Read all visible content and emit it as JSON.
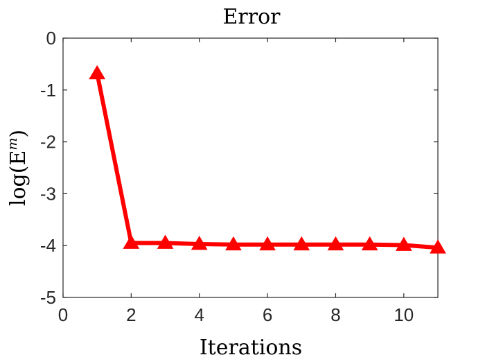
{
  "chart_data": {
    "type": "line",
    "title": "Error",
    "xlabel": "Iterations",
    "ylabel": "log(E",
    "ylabel_superscript": "m",
    "ylabel_suffix": ")",
    "xlim": [
      0,
      11
    ],
    "ylim": [
      -5,
      0
    ],
    "xticks": [
      0,
      2,
      4,
      6,
      8,
      10
    ],
    "yticks": [
      0,
      -1,
      -2,
      -3,
      -4,
      -5
    ],
    "grid": false,
    "series": [
      {
        "color": "#ff0000",
        "marker": "triangle-up",
        "x": [
          1,
          2,
          3,
          4,
          5,
          6,
          7,
          8,
          9,
          10,
          11
        ],
        "y": [
          -0.68,
          -3.95,
          -3.95,
          -3.97,
          -3.98,
          -3.98,
          -3.98,
          -3.98,
          -3.98,
          -3.99,
          -4.04
        ]
      }
    ]
  }
}
